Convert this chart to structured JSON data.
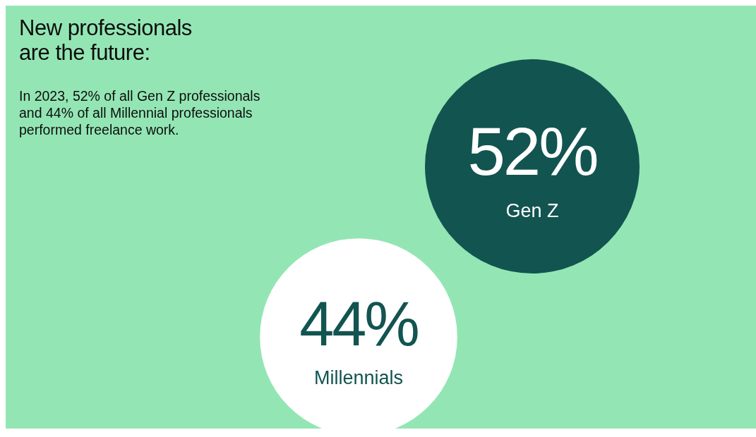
{
  "chart_data": {
    "type": "other",
    "title": "New professionals are the future:",
    "subtitle": "In 2023, 52% of all Gen Z professionals and 44% of all Millennial professionals performed freelance work.",
    "categories": [
      "Gen Z",
      "Millennials"
    ],
    "values": [
      52,
      44
    ],
    "value_labels": [
      "52%",
      "44%"
    ],
    "colors": [
      "#125450",
      "#ffffff"
    ]
  }
}
